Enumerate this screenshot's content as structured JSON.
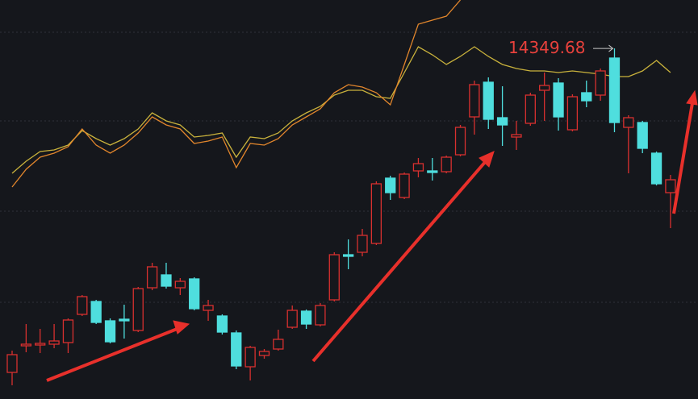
{
  "chart_data": {
    "type": "candlestick",
    "up_color": "#d8302f",
    "down_color": "#4fdede",
    "ylim": [
      12175,
      14650
    ],
    "open": [
      12340,
      12505,
      12510,
      12515,
      12525,
      12700,
      12780,
      12660,
      12670,
      12600,
      12865,
      12945,
      12865,
      12920,
      12725,
      12690,
      12585,
      12375,
      12445,
      12485,
      12620,
      12720,
      12635,
      12790,
      13070,
      13085,
      13140,
      13545,
      13425,
      13590,
      13590,
      13585,
      13690,
      13925,
      14140,
      13920,
      13800,
      13885,
      14090,
      14135,
      13845,
      14075,
      14060,
      14290,
      13860,
      13890,
      13700,
      13455
    ],
    "high": [
      12475,
      12640,
      12610,
      12640,
      12675,
      12820,
      12790,
      12675,
      12760,
      12870,
      13020,
      13020,
      12925,
      12930,
      12790,
      12700,
      12600,
      12505,
      12485,
      12605,
      12755,
      12730,
      12770,
      13085,
      13165,
      13230,
      13525,
      13560,
      13580,
      13670,
      13670,
      13685,
      13875,
      14150,
      14170,
      14115,
      13900,
      14075,
      14200,
      14165,
      14065,
      14150,
      14225,
      14349.68,
      13935,
      13900,
      13710,
      13565
    ],
    "low": [
      12260,
      12465,
      12460,
      12490,
      12460,
      12690,
      12640,
      12520,
      12550,
      12590,
      12850,
      12860,
      12820,
      12725,
      12660,
      12575,
      12360,
      12290,
      12425,
      12475,
      12610,
      12610,
      12625,
      12780,
      12980,
      13060,
      13130,
      13410,
      13415,
      13550,
      13530,
      13575,
      13680,
      13815,
      13850,
      13745,
      13720,
      13870,
      13900,
      13840,
      13835,
      13985,
      14025,
      13830,
      13575,
      13700,
      13500,
      13235
    ],
    "close": [
      12450,
      12515,
      12520,
      12535,
      12665,
      12810,
      12650,
      12530,
      12660,
      12860,
      12995,
      12875,
      12905,
      12735,
      12755,
      12590,
      12380,
      12495,
      12470,
      12545,
      12725,
      12640,
      12755,
      13070,
      13060,
      13190,
      13510,
      13455,
      13570,
      13635,
      13580,
      13675,
      13860,
      14125,
      13910,
      13875,
      13815,
      14060,
      14120,
      13925,
      14050,
      14025,
      14210,
      13890,
      13920,
      13730,
      13510,
      13535
    ],
    "lines": [
      {
        "color": "#c9b23c",
        "values": [
          13575,
          13650,
          13710,
          13720,
          13750,
          13840,
          13790,
          13750,
          13790,
          13850,
          13950,
          13900,
          13875,
          13800,
          13810,
          13825,
          13675,
          13800,
          13790,
          13825,
          13900,
          13950,
          13990,
          14060,
          14090,
          14090,
          14050,
          14040,
          14200,
          14360,
          14310,
          14250,
          14300,
          14360,
          14300,
          14250,
          14225,
          14210,
          14210,
          14200,
          14210,
          14200,
          14190,
          14175,
          14175,
          14210,
          14275,
          14200
        ]
      },
      {
        "color": "#e2862c",
        "values": [
          13490,
          13600,
          13675,
          13700,
          13740,
          13850,
          13750,
          13700,
          13750,
          13825,
          13925,
          13875,
          13850,
          13760,
          13775,
          13800,
          13610,
          13760,
          13750,
          13790,
          13875,
          13925,
          13975,
          14075,
          14125,
          14110,
          14075,
          14000,
          14250,
          14500,
          14525,
          14550,
          14650,
          null,
          null,
          null,
          null,
          null,
          null,
          null,
          null,
          null,
          null,
          null,
          null,
          null,
          null,
          null
        ]
      }
    ]
  }
}
